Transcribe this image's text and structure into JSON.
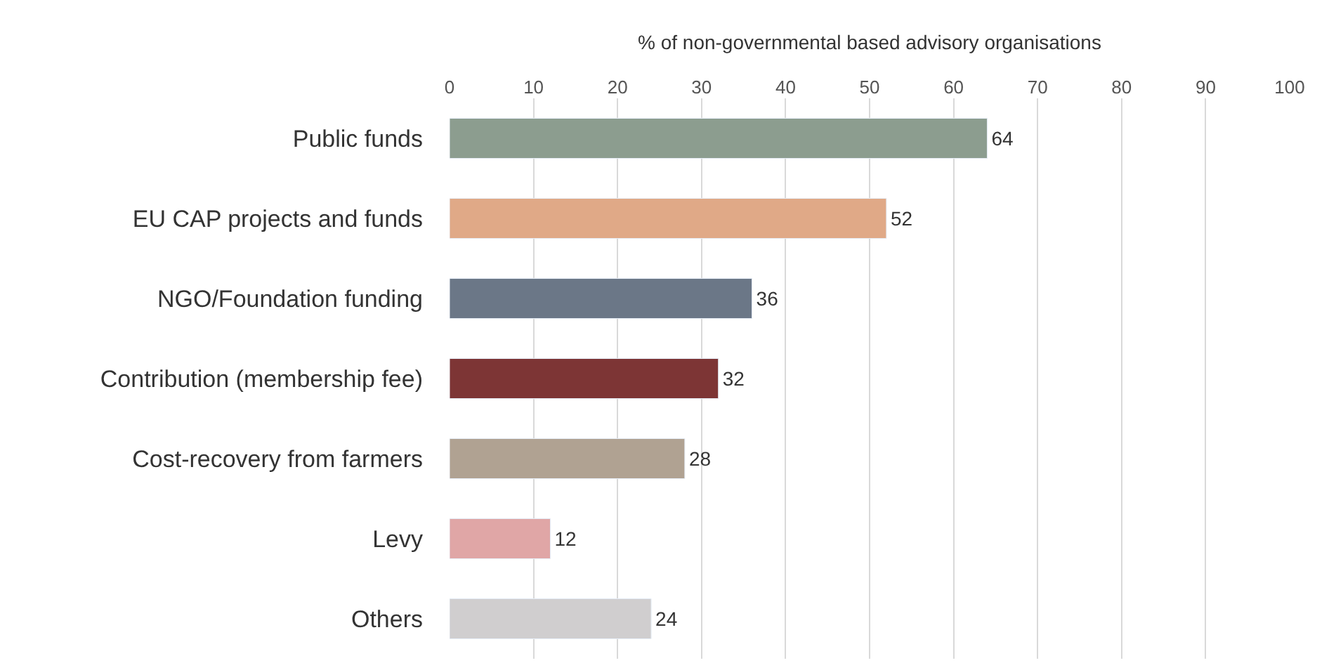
{
  "chart_data": {
    "type": "bar",
    "orientation": "horizontal",
    "xlabel": "% of non-governmental based advisory organisations",
    "categories": [
      "Public funds",
      "EU CAP projects and funds",
      "NGO/Foundation funding",
      "Contribution (membership fee)",
      "Cost-recovery from farmers",
      "Levy",
      "Others"
    ],
    "values": [
      64,
      52,
      36,
      32,
      28,
      12,
      24
    ],
    "colors": [
      "#8c9d8f",
      "#e0a987",
      "#6b7787",
      "#7d3535",
      "#b0a292",
      "#e0a6a6",
      "#d0cecf"
    ],
    "xlim": [
      0,
      100
    ],
    "xticks": [
      0,
      10,
      20,
      30,
      40,
      50,
      60,
      70,
      80,
      90,
      100
    ],
    "grid": "x",
    "data_labels": true
  }
}
